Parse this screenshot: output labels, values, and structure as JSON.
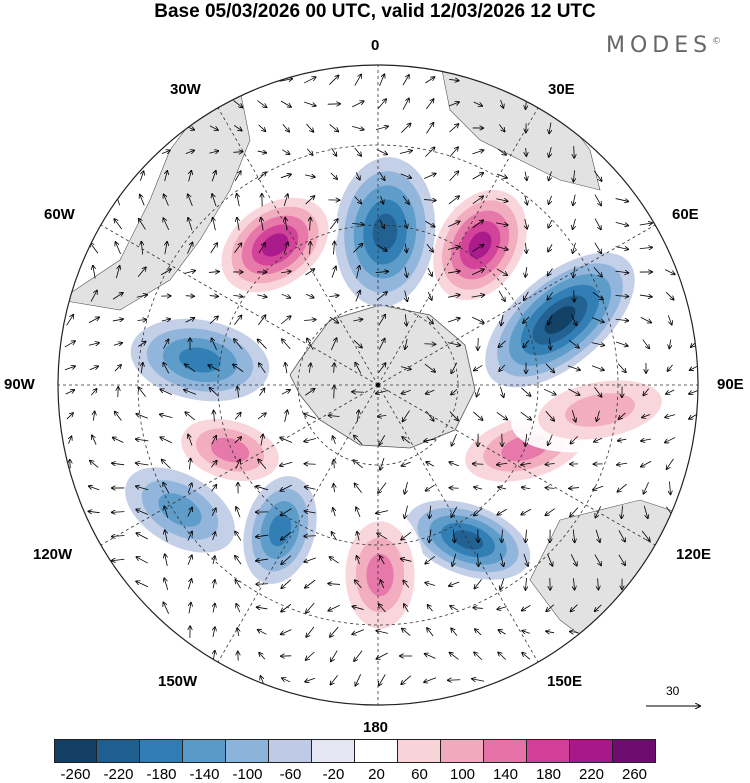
{
  "title": "Base 05/03/2026 00 UTC, valid 12/03/2026 12 UTC",
  "brand": "MODES",
  "brand_mark": "©",
  "longitude_labels": {
    "0": "0",
    "30E": "30E",
    "60E": "60E",
    "90E": "90E",
    "120E": "120E",
    "150E": "150E",
    "180": "180",
    "150W": "150W",
    "120W": "120W",
    "90W": "90W",
    "60W": "60W",
    "30W": "30W"
  },
  "reference_vector": {
    "label": "30"
  },
  "colorbar": {
    "ticks": [
      "-260",
      "-220",
      "-180",
      "-140",
      "-100",
      "-60",
      "-20",
      "20",
      "60",
      "100",
      "140",
      "180",
      "220",
      "260"
    ],
    "colors": [
      "#123f63",
      "#1f5f8f",
      "#2f7db4",
      "#5a9ac8",
      "#8cb3d9",
      "#bfcbe6",
      "#e4e6f3",
      "#ffffff",
      "#f8d3d8",
      "#f1a9bd",
      "#e573a8",
      "#d13f98",
      "#a8188a",
      "#6e0d6f"
    ]
  },
  "anomalies": [
    {
      "name": "high-south-atlantic",
      "value": 220
    },
    {
      "name": "low-drake",
      "value": -140
    },
    {
      "name": "high-indian-east",
      "value": 140
    },
    {
      "name": "low-indian",
      "value": -220
    },
    {
      "name": "low-south-america",
      "value": -180
    },
    {
      "name": "high-africa-south",
      "value": 240
    },
    {
      "name": "high-pacific",
      "value": 160
    },
    {
      "name": "low-pacific-se",
      "value": -140
    },
    {
      "name": "low-tasman",
      "value": -180
    },
    {
      "name": "high-nz",
      "value": 160
    },
    {
      "name": "high-southeast-pacific",
      "value": 120
    },
    {
      "name": "low-west-pacific",
      "value": -120
    }
  ]
}
